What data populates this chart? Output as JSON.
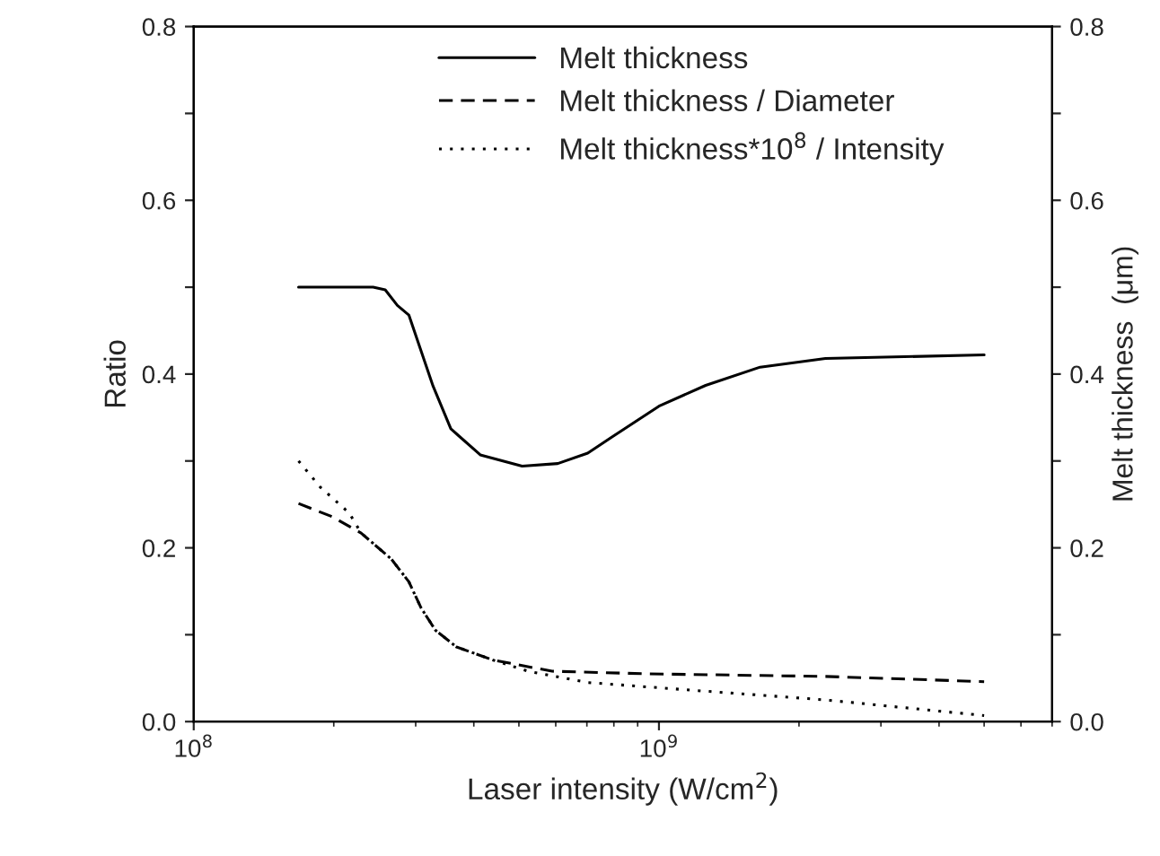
{
  "chart_data": {
    "type": "line",
    "xlabel": "Laser intensity (W/cm$^{2}$)",
    "ylabel": "Ratio",
    "y2label": "Melt thickness  (μm)",
    "log": "x",
    "xlim": [
      100000000.0,
      7000000000.0
    ],
    "xticks": [
      {
        "value": 100000000.0,
        "label": "10$^{8}$"
      },
      {
        "value": 1000000000.0,
        "label": "10$^{9}$"
      }
    ],
    "ylim": [
      0,
      0.8
    ],
    "yticks": [
      {
        "value": 0,
        "label": "0.0"
      },
      {
        "value": 0.1,
        "label": null
      },
      {
        "value": 0.2,
        "label": "0.2"
      },
      {
        "value": 0.3,
        "label": null
      },
      {
        "value": 0.4,
        "label": "0.4"
      },
      {
        "value": 0.5,
        "label": null
      },
      {
        "value": 0.6,
        "label": "0.6"
      },
      {
        "value": 0.7,
        "label": null
      },
      {
        "value": 0.8,
        "label": "0.8"
      }
    ],
    "y2lim": [
      0,
      0.8
    ],
    "y2ticks": [
      {
        "value": 0,
        "label": "0.0"
      },
      {
        "value": 0.1,
        "label": null
      },
      {
        "value": 0.2,
        "label": "0.2"
      },
      {
        "value": 0.3,
        "label": null
      },
      {
        "value": 0.4,
        "label": "0.4"
      },
      {
        "value": 0.5,
        "label": null
      },
      {
        "value": 0.6,
        "label": "0.6"
      },
      {
        "value": 0.7,
        "label": null
      },
      {
        "value": 0.8,
        "label": "0.8"
      }
    ],
    "legend": "top",
    "grid": false,
    "marker": "none",
    "series": [
      {
        "name": "Melt thickness",
        "color": "#000000",
        "line_style": "solid",
        "x": [
          168000000.0,
          243000000.0,
          258000000.0,
          274000000.0,
          290000000.0,
          327000000.0,
          357000000.0,
          413000000.0,
          508000000.0,
          606000000.0,
          703000000.0,
          790000000.0,
          1000000000.0,
          1260000000.0,
          1650000000.0,
          2280000000.0,
          5000000000.0
        ],
        "values": [
          0.5,
          0.5,
          0.497,
          0.479,
          0.468,
          0.386,
          0.337,
          0.307,
          0.294,
          0.297,
          0.309,
          0.327,
          0.363,
          0.387,
          0.408,
          0.418,
          0.422
        ]
      },
      {
        "name": "Melt thickness / Diameter",
        "color": "#000000",
        "line_style": "dashed",
        "x": [
          168000000.0,
          198000000.0,
          229000000.0,
          266000000.0,
          290000000.0,
          308000000.0,
          331000000.0,
          367000000.0,
          439000000.0,
          589000000.0,
          940000000.0,
          2280000000.0,
          5000000000.0
        ],
        "values": [
          0.251,
          0.236,
          0.217,
          0.187,
          0.161,
          0.131,
          0.105,
          0.086,
          0.071,
          0.058,
          0.055,
          0.052,
          0.046
        ]
      },
      {
        "name": "Melt thickness*10$^{8}$ / Intensity",
        "color": "#000000",
        "line_style": "dotted",
        "x": [
          168000000.0,
          187000000.0,
          216000000.0,
          229000000.0,
          266000000.0,
          290000000.0,
          308000000.0,
          331000000.0,
          367000000.0,
          439000000.0,
          523000000.0,
          703000000.0,
          1260000000.0,
          2280000000.0,
          5000000000.0
        ],
        "values": [
          0.3,
          0.27,
          0.24,
          0.217,
          0.187,
          0.161,
          0.131,
          0.105,
          0.086,
          0.071,
          0.058,
          0.045,
          0.035,
          0.025,
          0.007
        ]
      }
    ]
  }
}
